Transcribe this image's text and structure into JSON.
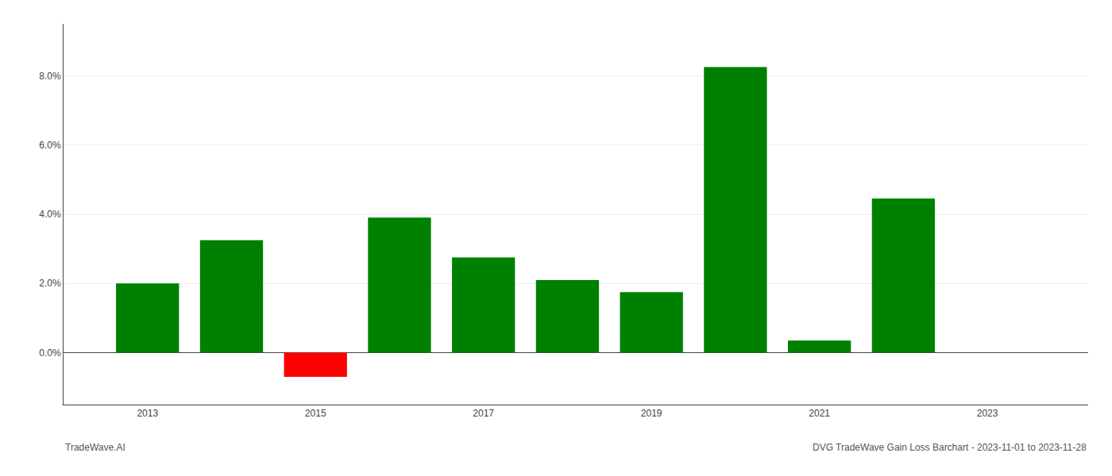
{
  "chart_data": {
    "type": "bar",
    "x": [
      2013,
      2014,
      2015,
      2016,
      2017,
      2018,
      2019,
      2020,
      2021,
      2022,
      2023
    ],
    "values": [
      0.02,
      0.0325,
      -0.007,
      0.039,
      0.0275,
      0.021,
      0.0175,
      0.0825,
      0.0035,
      0.0445,
      null
    ],
    "colors": [
      "#008000",
      "#008000",
      "#ff0000",
      "#008000",
      "#008000",
      "#008000",
      "#008000",
      "#008000",
      "#008000",
      "#008000",
      null
    ],
    "xlim": [
      2012.0,
      2024.2
    ],
    "xticks": [
      2013,
      2015,
      2017,
      2019,
      2021,
      2023
    ],
    "ylim": [
      -0.015,
      0.095
    ],
    "yticks": [
      {
        "value": 0.0,
        "label": "0.0%"
      },
      {
        "value": 0.02,
        "label": "2.0%"
      },
      {
        "value": 0.04,
        "label": "4.0%"
      },
      {
        "value": 0.06,
        "label": "6.0%"
      },
      {
        "value": 0.08,
        "label": "8.0%"
      }
    ],
    "grid": true,
    "annotations": [
      "TradeWave.AI",
      "DVG TradeWave Gain Loss Barchart - 2023-11-01 to 2023-11-28"
    ]
  }
}
